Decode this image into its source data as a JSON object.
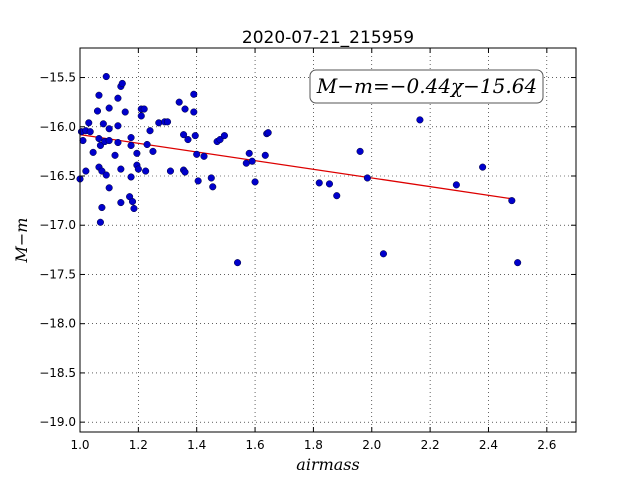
{
  "chart_data": {
    "type": "scatter",
    "title": "2020-07-21_215959",
    "xlabel": "airmass",
    "ylabel": "M−m",
    "xlim": [
      1.0,
      2.7
    ],
    "ylim": [
      -19.1,
      -15.2
    ],
    "y_inverted": true,
    "grid": true,
    "x_ticks": [
      1.0,
      1.2,
      1.4,
      1.6,
      1.8,
      2.0,
      2.2,
      2.4,
      2.6
    ],
    "x_tick_labels": [
      "1.0",
      "1.2",
      "1.4",
      "1.6",
      "1.8",
      "2.0",
      "2.2",
      "2.4",
      "2.6"
    ],
    "y_ticks": [
      -15.5,
      -16.0,
      -16.5,
      -17.0,
      -17.5,
      -18.0,
      -18.5,
      -19.0
    ],
    "y_tick_labels": [
      "−15.5",
      "−16.0",
      "−16.5",
      "−17.0",
      "−17.5",
      "−18.0",
      "−18.5",
      "−19.0"
    ],
    "annotation": "M−m=−0.44χ−15.64",
    "colors": {
      "points": "#0000cc",
      "fit": "#dd0000"
    },
    "fit": {
      "slope": -0.44,
      "intercept": -15.64,
      "x_range": [
        1.0,
        2.49
      ]
    },
    "points": [
      {
        "x": 1.09,
        "y": -15.49
      },
      {
        "x": 1.14,
        "y": -15.59
      },
      {
        "x": 1.145,
        "y": -15.56
      },
      {
        "x": 1.065,
        "y": -15.68
      },
      {
        "x": 1.13,
        "y": -15.71
      },
      {
        "x": 1.06,
        "y": -15.84
      },
      {
        "x": 1.1,
        "y": -15.81
      },
      {
        "x": 1.155,
        "y": -15.85
      },
      {
        "x": 1.21,
        "y": -15.82
      },
      {
        "x": 1.22,
        "y": -15.82
      },
      {
        "x": 1.21,
        "y": -15.89
      },
      {
        "x": 1.03,
        "y": -15.96
      },
      {
        "x": 1.08,
        "y": -15.97
      },
      {
        "x": 1.13,
        "y": -15.99
      },
      {
        "x": 1.27,
        "y": -15.96
      },
      {
        "x": 1.29,
        "y": -15.95
      },
      {
        "x": 1.3,
        "y": -15.95
      },
      {
        "x": 1.34,
        "y": -15.75
      },
      {
        "x": 1.39,
        "y": -15.67
      },
      {
        "x": 1.36,
        "y": -15.82
      },
      {
        "x": 1.39,
        "y": -15.85
      },
      {
        "x": 1.005,
        "y": -16.05
      },
      {
        "x": 1.02,
        "y": -16.04
      },
      {
        "x": 1.035,
        "y": -16.05
      },
      {
        "x": 1.1,
        "y": -16.02
      },
      {
        "x": 1.24,
        "y": -16.04
      },
      {
        "x": 1.01,
        "y": -16.14
      },
      {
        "x": 1.065,
        "y": -16.12
      },
      {
        "x": 1.07,
        "y": -16.19
      },
      {
        "x": 1.085,
        "y": -16.15
      },
      {
        "x": 1.1,
        "y": -16.14
      },
      {
        "x": 1.13,
        "y": -16.16
      },
      {
        "x": 1.175,
        "y": -16.11
      },
      {
        "x": 1.175,
        "y": -16.19
      },
      {
        "x": 1.23,
        "y": -16.18
      },
      {
        "x": 1.25,
        "y": -16.25
      },
      {
        "x": 1.045,
        "y": -16.26
      },
      {
        "x": 1.12,
        "y": -16.29
      },
      {
        "x": 1.195,
        "y": -16.27
      },
      {
        "x": 1.355,
        "y": -16.08
      },
      {
        "x": 1.37,
        "y": -16.13
      },
      {
        "x": 1.395,
        "y": -16.09
      },
      {
        "x": 1.4,
        "y": -16.28
      },
      {
        "x": 1.425,
        "y": -16.3
      },
      {
        "x": 1.47,
        "y": -16.15
      },
      {
        "x": 1.48,
        "y": -16.13
      },
      {
        "x": 1.495,
        "y": -16.09
      },
      {
        "x": 1.0,
        "y": -16.53
      },
      {
        "x": 1.02,
        "y": -16.45
      },
      {
        "x": 1.065,
        "y": -16.41
      },
      {
        "x": 1.075,
        "y": -16.45
      },
      {
        "x": 1.09,
        "y": -16.49
      },
      {
        "x": 1.14,
        "y": -16.43
      },
      {
        "x": 1.175,
        "y": -16.51
      },
      {
        "x": 1.195,
        "y": -16.39
      },
      {
        "x": 1.2,
        "y": -16.43
      },
      {
        "x": 1.225,
        "y": -16.45
      },
      {
        "x": 1.31,
        "y": -16.45
      },
      {
        "x": 1.355,
        "y": -16.44
      },
      {
        "x": 1.36,
        "y": -16.46
      },
      {
        "x": 1.405,
        "y": -16.55
      },
      {
        "x": 1.45,
        "y": -16.52
      },
      {
        "x": 1.455,
        "y": -16.61
      },
      {
        "x": 1.1,
        "y": -16.62
      },
      {
        "x": 1.14,
        "y": -16.77
      },
      {
        "x": 1.17,
        "y": -16.71
      },
      {
        "x": 1.18,
        "y": -16.76
      },
      {
        "x": 1.185,
        "y": -16.83
      },
      {
        "x": 1.075,
        "y": -16.82
      },
      {
        "x": 1.07,
        "y": -16.97
      },
      {
        "x": 1.57,
        "y": -16.37
      },
      {
        "x": 1.58,
        "y": -16.27
      },
      {
        "x": 1.59,
        "y": -16.35
      },
      {
        "x": 1.6,
        "y": -16.56
      },
      {
        "x": 1.635,
        "y": -16.29
      },
      {
        "x": 1.64,
        "y": -16.07
      },
      {
        "x": 1.645,
        "y": -16.06
      },
      {
        "x": 1.54,
        "y": -17.38
      },
      {
        "x": 1.82,
        "y": -16.57
      },
      {
        "x": 1.855,
        "y": -16.58
      },
      {
        "x": 1.88,
        "y": -16.7
      },
      {
        "x": 1.96,
        "y": -16.25
      },
      {
        "x": 1.985,
        "y": -16.52
      },
      {
        "x": 2.04,
        "y": -17.29
      },
      {
        "x": 2.165,
        "y": -15.93
      },
      {
        "x": 2.29,
        "y": -16.59
      },
      {
        "x": 2.38,
        "y": -16.41
      },
      {
        "x": 2.48,
        "y": -16.75
      },
      {
        "x": 2.5,
        "y": -17.38
      }
    ]
  }
}
